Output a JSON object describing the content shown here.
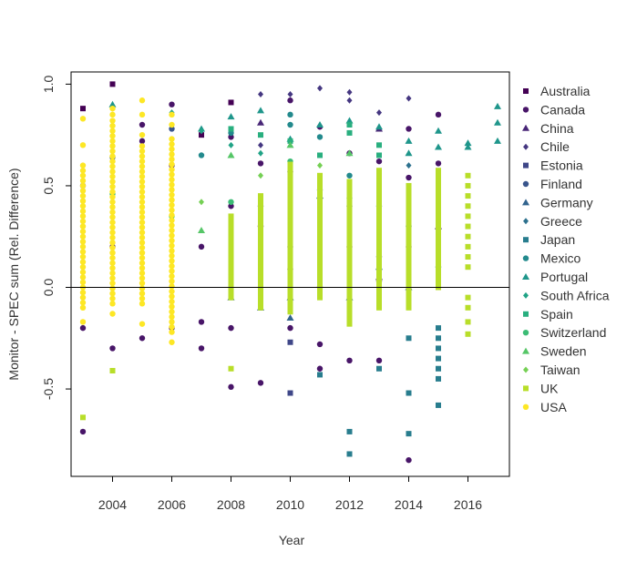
{
  "chart_data": {
    "type": "scatter",
    "title": "",
    "xlabel": "Year",
    "ylabel": "Monitor - SPEC sum (Rel. Difference)",
    "xlim": [
      2002.6,
      2017.4
    ],
    "ylim": [
      -0.93,
      1.06
    ],
    "x_ticks": [
      2004,
      2006,
      2008,
      2010,
      2012,
      2014,
      2016
    ],
    "y_ticks": [
      -0.5,
      0.0,
      0.5,
      1.0
    ],
    "x_tick_labels": [
      "2004",
      "2006",
      "2008",
      "2010",
      "2012",
      "2014",
      "2016"
    ],
    "y_tick_labels": [
      "-0.5",
      "0.0",
      "0.5",
      "1.0"
    ],
    "reference_line_y": 0,
    "grid": false,
    "legend_position": "right",
    "series": [
      {
        "name": "Australia",
        "shape": "square",
        "color": "#440154",
        "points": [
          [
            2003,
            0.88
          ],
          [
            2004,
            1.0
          ],
          [
            2008,
            0.91
          ],
          [
            2007,
            0.75
          ]
        ]
      },
      {
        "name": "Canada",
        "shape": "circle",
        "color": "#481568",
        "points": [
          [
            2003,
            -0.71
          ],
          [
            2003,
            -0.2
          ],
          [
            2003,
            0.5
          ],
          [
            2004,
            -0.3
          ],
          [
            2004,
            0.2
          ],
          [
            2005,
            -0.25
          ],
          [
            2005,
            0.8
          ],
          [
            2005,
            0.72
          ],
          [
            2006,
            0.9
          ],
          [
            2006,
            -0.2
          ],
          [
            2006,
            0.6
          ],
          [
            2007,
            -0.3
          ],
          [
            2007,
            0.2
          ],
          [
            2007,
            -0.17
          ],
          [
            2008,
            -0.49
          ],
          [
            2008,
            -0.2
          ],
          [
            2008,
            0.4
          ],
          [
            2008,
            0.74
          ],
          [
            2009,
            -0.47
          ],
          [
            2009,
            0.3
          ],
          [
            2009,
            0.61
          ],
          [
            2010,
            0.92
          ],
          [
            2010,
            0.09
          ],
          [
            2010,
            -0.2
          ],
          [
            2010,
            0.57
          ],
          [
            2011,
            -0.28
          ],
          [
            2011,
            -0.4
          ],
          [
            2011,
            0.0
          ],
          [
            2011,
            0.79
          ],
          [
            2012,
            -0.36
          ],
          [
            2012,
            0.2
          ],
          [
            2012,
            0.66
          ],
          [
            2013,
            -0.36
          ],
          [
            2013,
            0.03
          ],
          [
            2013,
            0.62
          ],
          [
            2014,
            -0.85
          ],
          [
            2014,
            0.78
          ],
          [
            2014,
            0.54
          ],
          [
            2014,
            0.2
          ],
          [
            2015,
            0.85
          ],
          [
            2015,
            0.61
          ]
        ]
      },
      {
        "name": "China",
        "shape": "triangle",
        "color": "#482677",
        "points": [
          [
            2009,
            0.81
          ],
          [
            2013,
            0.78
          ],
          [
            2013,
            0.05
          ],
          [
            2015,
            0.3
          ]
        ]
      },
      {
        "name": "Chile",
        "shape": "diamond",
        "color": "#453781",
        "points": [
          [
            2009,
            0.95
          ],
          [
            2010,
            0.95
          ],
          [
            2011,
            0.98
          ],
          [
            2012,
            0.96
          ],
          [
            2012,
            0.92
          ],
          [
            2013,
            0.86
          ],
          [
            2014,
            0.93
          ],
          [
            2009,
            0.7
          ],
          [
            2010,
            0.6
          ]
        ]
      },
      {
        "name": "Estonia",
        "shape": "square",
        "color": "#3F4788",
        "points": [
          [
            2010,
            -0.27
          ],
          [
            2010,
            -0.52
          ],
          [
            2011,
            0.1
          ],
          [
            2012,
            0.3
          ]
        ]
      },
      {
        "name": "Finland",
        "shape": "circle",
        "color": "#39558C",
        "points": [
          [
            2004,
            0.64
          ],
          [
            2006,
            0.78
          ],
          [
            2009,
            0.4
          ],
          [
            2010,
            0.2
          ],
          [
            2011,
            0.48
          ],
          [
            2012,
            0.4
          ],
          [
            2013,
            0.15
          ]
        ]
      },
      {
        "name": "Germany",
        "shape": "triangle",
        "color": "#32648E",
        "points": [
          [
            2008,
            -0.05
          ],
          [
            2009,
            -0.1
          ],
          [
            2010,
            -0.15
          ],
          [
            2010,
            -0.05
          ],
          [
            2011,
            0.45
          ],
          [
            2012,
            -0.05
          ],
          [
            2013,
            0.1
          ],
          [
            2014,
            0.0
          ]
        ]
      },
      {
        "name": "Greece",
        "shape": "diamond",
        "color": "#2D718E",
        "points": [
          [
            2008,
            0.1
          ],
          [
            2009,
            0.2
          ],
          [
            2010,
            0.15
          ],
          [
            2011,
            0.3
          ],
          [
            2012,
            0.35
          ],
          [
            2013,
            0.2
          ],
          [
            2014,
            0.6
          ]
        ]
      },
      {
        "name": "Japan",
        "shape": "square",
        "color": "#287D8E",
        "points": [
          [
            2011,
            -0.43
          ],
          [
            2012,
            -0.71
          ],
          [
            2012,
            -0.82
          ],
          [
            2013,
            -0.4
          ],
          [
            2014,
            -0.52
          ],
          [
            2014,
            -0.72
          ],
          [
            2014,
            -0.25
          ],
          [
            2015,
            -0.58
          ],
          [
            2015,
            -0.45
          ],
          [
            2015,
            -0.4
          ],
          [
            2015,
            -0.35
          ],
          [
            2015,
            -0.3
          ],
          [
            2015,
            -0.25
          ],
          [
            2015,
            -0.2
          ]
        ]
      },
      {
        "name": "Mexico",
        "shape": "circle",
        "color": "#238A8D",
        "points": [
          [
            2007,
            0.65
          ],
          [
            2008,
            0.76
          ],
          [
            2010,
            0.85
          ],
          [
            2010,
            0.8
          ],
          [
            2011,
            0.74
          ],
          [
            2012,
            0.55
          ],
          [
            2013,
            0.4
          ],
          [
            2014,
            0.3
          ],
          [
            2015,
            0.1
          ]
        ]
      },
      {
        "name": "Portugal",
        "shape": "triangle",
        "color": "#1F968B",
        "points": [
          [
            2004,
            0.9
          ],
          [
            2007,
            0.78
          ],
          [
            2008,
            0.84
          ],
          [
            2009,
            0.87
          ],
          [
            2010,
            0.73
          ],
          [
            2011,
            0.8
          ],
          [
            2012,
            0.82
          ],
          [
            2013,
            0.79
          ],
          [
            2014,
            0.72
          ],
          [
            2014,
            0.66
          ],
          [
            2015,
            0.77
          ],
          [
            2015,
            0.69
          ],
          [
            2016,
            0.71
          ],
          [
            2016,
            0.69
          ],
          [
            2017,
            0.89
          ],
          [
            2017,
            0.81
          ],
          [
            2017,
            0.72
          ]
        ]
      },
      {
        "name": "South Africa",
        "shape": "diamond",
        "color": "#20A386",
        "points": [
          [
            2006,
            0.86
          ],
          [
            2007,
            0.77
          ],
          [
            2008,
            0.7
          ],
          [
            2009,
            0.66
          ],
          [
            2010,
            0.58
          ],
          [
            2011,
            0.52
          ]
        ]
      },
      {
        "name": "Spain",
        "shape": "square",
        "color": "#29AF7F",
        "points": [
          [
            2008,
            0.78
          ],
          [
            2009,
            0.75
          ],
          [
            2010,
            0.72
          ],
          [
            2011,
            0.65
          ],
          [
            2012,
            0.8
          ],
          [
            2012,
            0.76
          ],
          [
            2013,
            0.7
          ],
          [
            2013,
            0.65
          ]
        ]
      },
      {
        "name": "Switzerland",
        "shape": "circle",
        "color": "#3CBC75",
        "points": [
          [
            2004,
            0.46
          ],
          [
            2006,
            0.35
          ],
          [
            2008,
            0.42
          ],
          [
            2010,
            0.62
          ],
          [
            2012,
            0.44
          ]
        ]
      },
      {
        "name": "Sweden",
        "shape": "triangle",
        "color": "#56C667",
        "points": [
          [
            2007,
            0.28
          ],
          [
            2008,
            0.65
          ],
          [
            2010,
            0.7
          ],
          [
            2012,
            0.66
          ]
        ]
      },
      {
        "name": "Taiwan",
        "shape": "diamond",
        "color": "#75D054",
        "points": [
          [
            2005,
            0.5
          ],
          [
            2007,
            0.42
          ],
          [
            2009,
            0.55
          ],
          [
            2011,
            0.6
          ],
          [
            2013,
            0.5
          ]
        ]
      },
      {
        "name": "UK",
        "shape": "square",
        "color": "#B8DE29",
        "points": [
          [
            2003,
            -0.64
          ],
          [
            2004,
            -0.41
          ],
          [
            2008,
            -0.4
          ],
          [
            2016,
            0.55
          ],
          [
            2016,
            0.5
          ],
          [
            2016,
            0.45
          ],
          [
            2016,
            0.4
          ],
          [
            2016,
            0.35
          ],
          [
            2016,
            0.3
          ],
          [
            2016,
            0.25
          ],
          [
            2016,
            0.2
          ],
          [
            2016,
            0.15
          ],
          [
            2016,
            0.1
          ],
          [
            2016,
            -0.05
          ],
          [
            2016,
            -0.1
          ],
          [
            2016,
            -0.17
          ],
          [
            2016,
            -0.23
          ]
        ],
        "ranges": [
          [
            2008,
            -0.05,
            0.37
          ],
          [
            2009,
            -0.1,
            0.45
          ],
          [
            2010,
            -0.12,
            0.62
          ],
          [
            2011,
            -0.05,
            0.57
          ],
          [
            2012,
            -0.18,
            0.52
          ],
          [
            2013,
            -0.1,
            0.58
          ],
          [
            2014,
            -0.1,
            0.5
          ],
          [
            2015,
            0.0,
            0.58
          ]
        ]
      },
      {
        "name": "USA",
        "shape": "circle",
        "color": "#FDE725",
        "points": [
          [
            2003,
            0.83
          ],
          [
            2003,
            0.7
          ],
          [
            2003,
            0.6
          ],
          [
            2004,
            0.88
          ],
          [
            2004,
            0.85
          ],
          [
            2005,
            0.92
          ],
          [
            2005,
            0.85
          ],
          [
            2005,
            0.75
          ],
          [
            2006,
            0.85
          ],
          [
            2006,
            0.8
          ],
          [
            2006,
            -0.27
          ],
          [
            2003,
            -0.17
          ],
          [
            2004,
            -0.13
          ],
          [
            2005,
            -0.18
          ]
        ],
        "ranges": [
          [
            2003,
            -0.1,
            0.58
          ],
          [
            2004,
            -0.08,
            0.82
          ],
          [
            2005,
            -0.08,
            0.7
          ],
          [
            2006,
            -0.22,
            0.75
          ]
        ]
      }
    ]
  }
}
